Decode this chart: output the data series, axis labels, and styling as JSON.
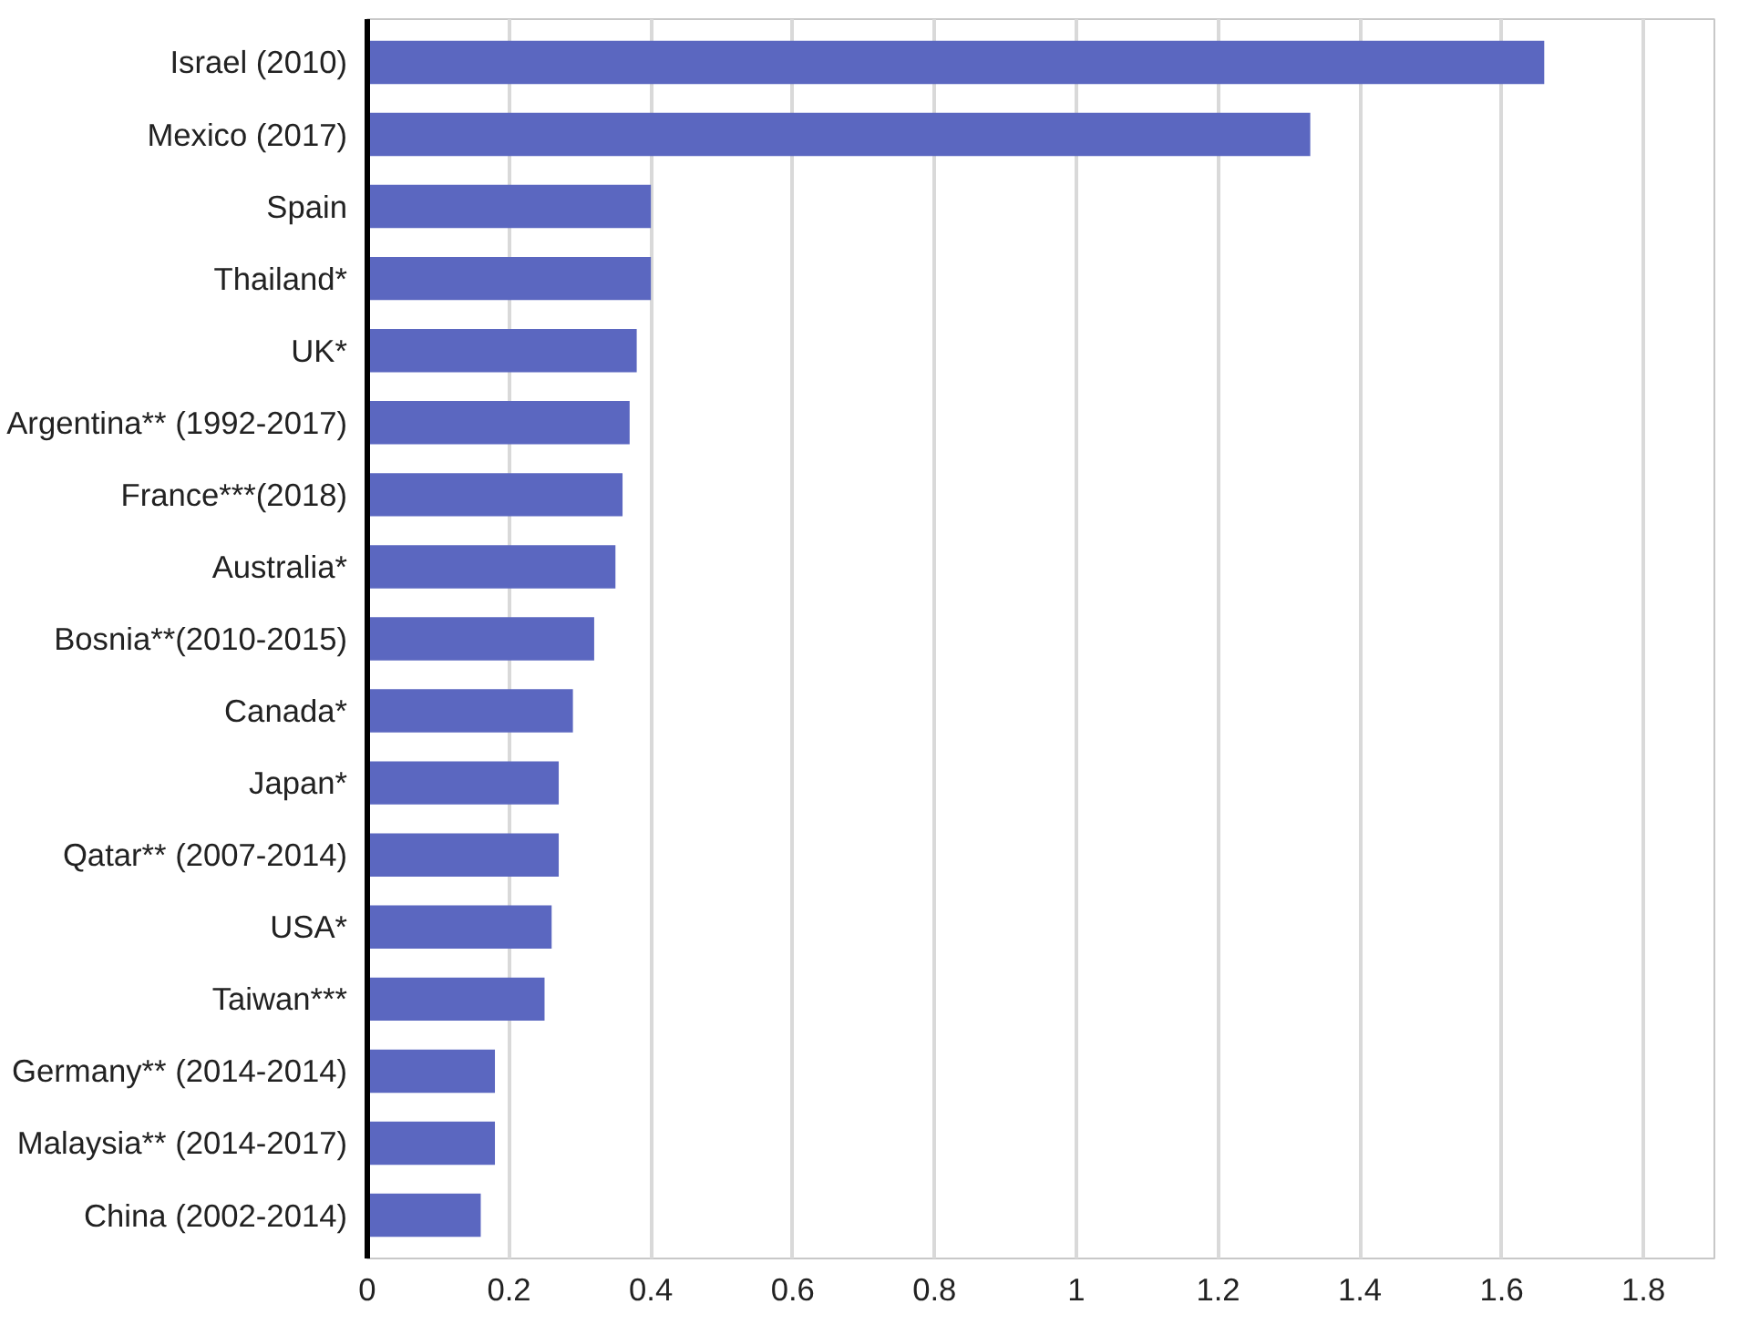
{
  "chart_data": {
    "type": "bar",
    "orientation": "horizontal",
    "categories": [
      "Israel (2010)",
      "Mexico (2017)",
      "Spain",
      "Thailand*",
      "UK*",
      "Argentina** (1992-2017)",
      "France***(2018)",
      "Australia*",
      "Bosnia**(2010-2015)",
      "Canada*",
      "Japan*",
      "Qatar** (2007-2014)",
      "USA*",
      "Taiwan***",
      "Germany** (2014-2014)",
      "Malaysia** (2014-2017)",
      "China (2002-2014)"
    ],
    "values": [
      1.66,
      1.33,
      0.4,
      0.4,
      0.38,
      0.37,
      0.36,
      0.35,
      0.32,
      0.29,
      0.27,
      0.27,
      0.26,
      0.25,
      0.18,
      0.18,
      0.16
    ],
    "color": "#5b67c0",
    "xlim": [
      0,
      1.9
    ],
    "xticks": [
      0,
      0.2,
      0.4,
      0.6,
      0.8,
      1,
      1.2,
      1.4,
      1.6,
      1.8
    ],
    "grid": "x"
  }
}
